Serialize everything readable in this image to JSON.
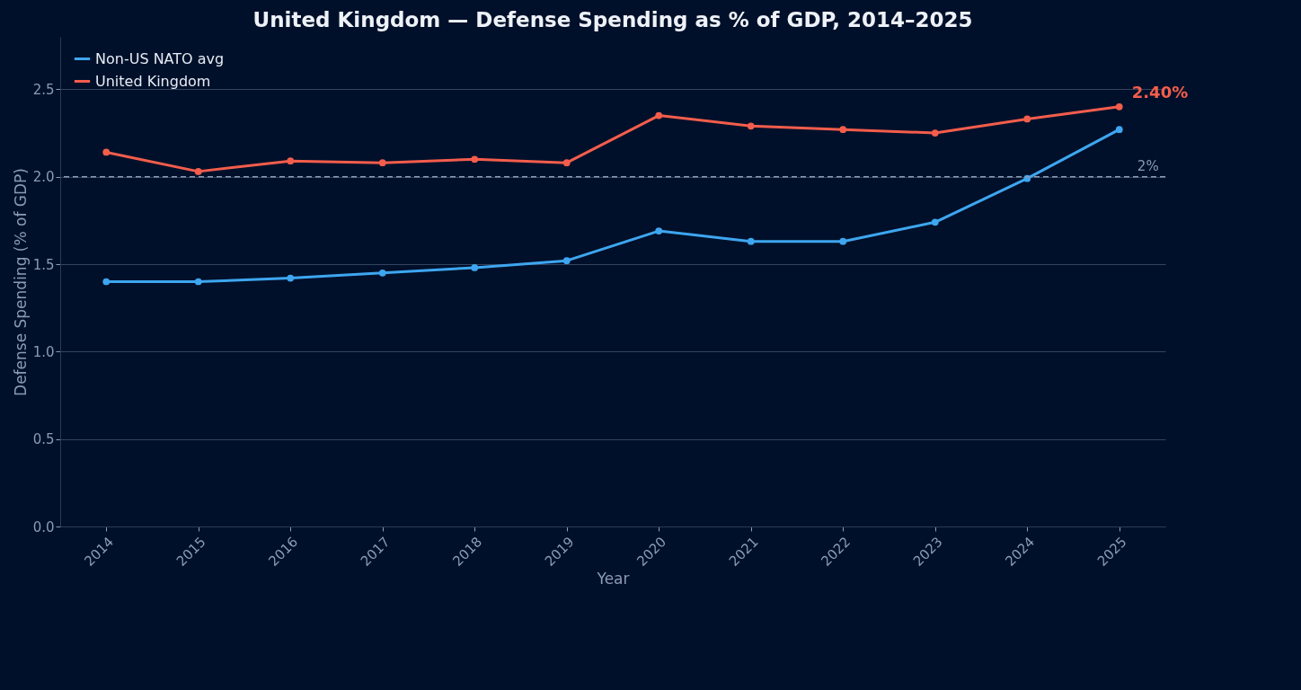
{
  "chart_data": {
    "type": "line",
    "title": "United Kingdom — Defense Spending as % of GDP, 2014–2025",
    "xlabel": "Year",
    "ylabel": "Defense Spending (% of GDP)",
    "categories": [
      "2014",
      "2015",
      "2016",
      "2017",
      "2018",
      "2019",
      "2020",
      "2021",
      "2022",
      "2023",
      "2024",
      "2025"
    ],
    "series": [
      {
        "name": "Non-US NATO avg",
        "color": "#3ea6f0",
        "values": [
          1.4,
          1.4,
          1.42,
          1.45,
          1.48,
          1.52,
          1.69,
          1.63,
          1.63,
          1.74,
          1.99,
          2.27
        ]
      },
      {
        "name": "United Kingdom",
        "color": "#f45d4c",
        "values": [
          2.14,
          2.03,
          2.09,
          2.08,
          2.1,
          2.08,
          2.35,
          2.29,
          2.27,
          2.25,
          2.33,
          2.4
        ]
      }
    ],
    "ylim": [
      0,
      2.8
    ],
    "yticks": [
      {
        "value": 0,
        "label": "0.0"
      },
      0.5,
      {
        "value": 1,
        "label": "1.0"
      },
      1.5,
      {
        "value": 2,
        "label": "2.0"
      },
      2.5
    ],
    "ref_lines": [
      {
        "axis": "y",
        "value": 2,
        "label": "2%",
        "color": "#8a9bb5",
        "line_style": "dashed"
      }
    ],
    "annotations": [
      {
        "text": "2.40%",
        "x": "2025",
        "y": 2.4
      }
    ],
    "grid": "y",
    "legend": "top left",
    "marker": "circle",
    "line_style": "solid"
  }
}
